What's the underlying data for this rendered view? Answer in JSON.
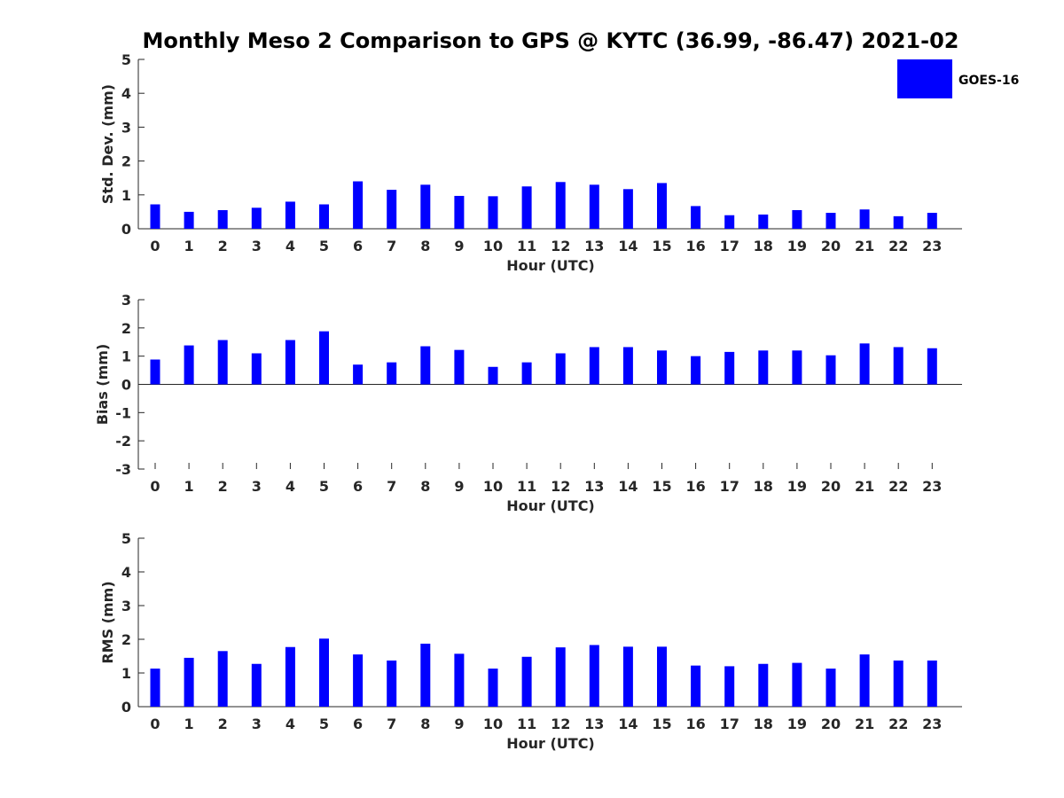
{
  "title": "Monthly Meso 2 Comparison to GPS @ KYTC (36.99, -86.47) 2021-02",
  "legend": {
    "label": "GOES-16",
    "color": "#0000ff",
    "placement": "top-right"
  },
  "chart_data": [
    {
      "type": "bar",
      "name": "std-dev",
      "categories": [
        "0",
        "1",
        "2",
        "3",
        "4",
        "5",
        "6",
        "7",
        "8",
        "9",
        "10",
        "11",
        "12",
        "13",
        "14",
        "15",
        "16",
        "17",
        "18",
        "19",
        "20",
        "21",
        "22",
        "23"
      ],
      "series": [
        {
          "name": "GOES-16",
          "color": "#0000ff",
          "values": [
            0.72,
            0.5,
            0.55,
            0.62,
            0.8,
            0.72,
            1.4,
            1.15,
            1.3,
            0.97,
            0.96,
            1.25,
            1.38,
            1.3,
            1.17,
            1.35,
            0.67,
            0.4,
            0.42,
            0.55,
            0.47,
            0.57,
            0.37,
            0.47
          ]
        }
      ],
      "xlabel": "Hour (UTC)",
      "ylabel": "Std. Dev. (mm)",
      "ylim": [
        0,
        5
      ],
      "yticks": [
        "0",
        "1",
        "2",
        "3",
        "4",
        "5"
      ],
      "grid": false
    },
    {
      "type": "bar",
      "name": "bias",
      "categories": [
        "0",
        "1",
        "2",
        "3",
        "4",
        "5",
        "6",
        "7",
        "8",
        "9",
        "10",
        "11",
        "12",
        "13",
        "14",
        "15",
        "16",
        "17",
        "18",
        "19",
        "20",
        "21",
        "22",
        "23"
      ],
      "series": [
        {
          "name": "GOES-16",
          "color": "#0000ff",
          "values": [
            0.88,
            1.38,
            1.57,
            1.1,
            1.57,
            1.88,
            0.7,
            0.78,
            1.35,
            1.22,
            0.62,
            0.78,
            1.1,
            1.32,
            1.32,
            1.2,
            1.0,
            1.15,
            1.2,
            1.2,
            1.03,
            1.45,
            1.32,
            1.28
          ]
        }
      ],
      "xlabel": "Hour (UTC)",
      "ylabel": "Bias (mm)",
      "ylim": [
        -3,
        3
      ],
      "yticks": [
        "-3",
        "-2",
        "-1",
        "0",
        "1",
        "2",
        "3"
      ],
      "grid": false
    },
    {
      "type": "bar",
      "name": "rms",
      "categories": [
        "0",
        "1",
        "2",
        "3",
        "4",
        "5",
        "6",
        "7",
        "8",
        "9",
        "10",
        "11",
        "12",
        "13",
        "14",
        "15",
        "16",
        "17",
        "18",
        "19",
        "20",
        "21",
        "22",
        "23"
      ],
      "series": [
        {
          "name": "GOES-16",
          "color": "#0000ff",
          "values": [
            1.13,
            1.45,
            1.65,
            1.27,
            1.77,
            2.02,
            1.55,
            1.37,
            1.87,
            1.57,
            1.13,
            1.48,
            1.76,
            1.83,
            1.78,
            1.78,
            1.22,
            1.2,
            1.27,
            1.3,
            1.13,
            1.55,
            1.37,
            1.37
          ]
        }
      ],
      "xlabel": "Hour (UTC)",
      "ylabel": "RMS (mm)",
      "ylim": [
        0,
        5
      ],
      "yticks": [
        "0",
        "1",
        "2",
        "3",
        "4",
        "5"
      ],
      "grid": false
    }
  ]
}
